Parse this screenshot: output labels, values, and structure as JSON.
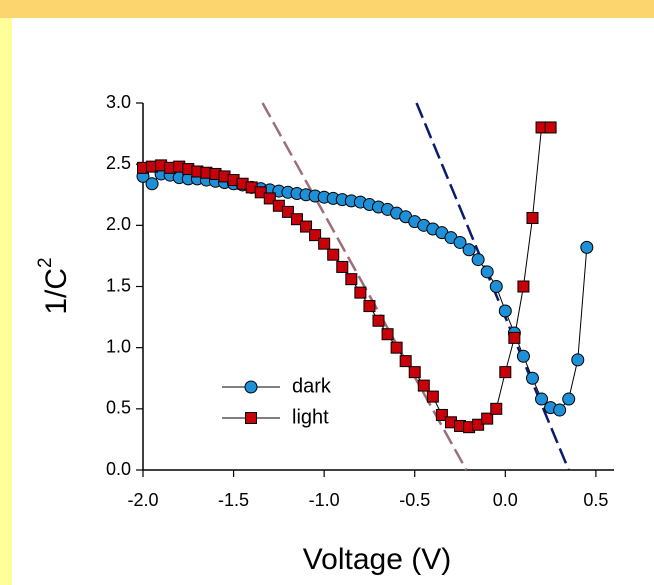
{
  "chart_data": {
    "type": "scatter",
    "xlabel": "Voltage (V)",
    "ylabel": "1/C",
    "ylabel_sup": "2",
    "xlim": [
      -2.0,
      0.6
    ],
    "ylim": [
      0.0,
      3.0
    ],
    "xticks": [
      {
        "value": -2,
        "label": "-2.0"
      },
      -1.5,
      {
        "value": -1,
        "label": "-1.0"
      },
      -0.5,
      {
        "value": 0,
        "label": "0.0"
      },
      0.5
    ],
    "yticks": [
      {
        "value": 0,
        "label": "0.0"
      },
      0.5,
      {
        "value": 1,
        "label": "1.0"
      },
      1.5,
      {
        "value": 2,
        "label": "2.0"
      },
      2.5,
      {
        "value": 3,
        "label": "3.0"
      }
    ],
    "legend": "lower-left",
    "series": [
      {
        "name": "dark",
        "color": "#1e90d8",
        "marker": "circle",
        "x": [
          -2.0,
          -1.95,
          -1.9,
          -1.85,
          -1.8,
          -1.75,
          -1.7,
          -1.65,
          -1.6,
          -1.55,
          -1.5,
          -1.45,
          -1.4,
          -1.35,
          -1.3,
          -1.25,
          -1.2,
          -1.15,
          -1.1,
          -1.05,
          -1.0,
          -0.95,
          -0.9,
          -0.85,
          -0.8,
          -0.75,
          -0.7,
          -0.65,
          -0.6,
          -0.55,
          -0.5,
          -0.45,
          -0.4,
          -0.35,
          -0.3,
          -0.25,
          -0.2,
          -0.15,
          -0.1,
          -0.05,
          0.0,
          0.05,
          0.1,
          0.15,
          0.2,
          0.25,
          0.3,
          0.35,
          0.4,
          0.45
        ],
        "values": [
          2.4,
          2.34,
          2.42,
          2.41,
          2.39,
          2.38,
          2.38,
          2.37,
          2.36,
          2.35,
          2.34,
          2.33,
          2.31,
          2.3,
          2.29,
          2.28,
          2.27,
          2.26,
          2.25,
          2.24,
          2.23,
          2.22,
          2.21,
          2.2,
          2.19,
          2.17,
          2.15,
          2.13,
          2.1,
          2.07,
          2.03,
          2.0,
          1.97,
          1.94,
          1.9,
          1.86,
          1.8,
          1.72,
          1.62,
          1.5,
          1.3,
          1.12,
          0.93,
          0.75,
          0.58,
          0.51,
          0.49,
          0.58,
          0.9,
          1.82
        ]
      },
      {
        "name": "light",
        "color": "#c8000a",
        "marker": "square",
        "x": [
          -2.0,
          -1.95,
          -1.9,
          -1.85,
          -1.8,
          -1.75,
          -1.7,
          -1.65,
          -1.6,
          -1.55,
          -1.5,
          -1.45,
          -1.4,
          -1.35,
          -1.3,
          -1.25,
          -1.2,
          -1.15,
          -1.1,
          -1.05,
          -1.0,
          -0.95,
          -0.9,
          -0.85,
          -0.8,
          -0.75,
          -0.7,
          -0.65,
          -0.6,
          -0.55,
          -0.5,
          -0.45,
          -0.4,
          -0.35,
          -0.3,
          -0.25,
          -0.2,
          -0.15,
          -0.1,
          -0.05,
          0.0,
          0.05,
          0.1,
          0.15,
          0.2,
          0.25
        ],
        "values": [
          2.47,
          2.48,
          2.49,
          2.47,
          2.48,
          2.46,
          2.44,
          2.43,
          2.42,
          2.4,
          2.37,
          2.34,
          2.31,
          2.27,
          2.22,
          2.16,
          2.11,
          2.05,
          1.99,
          1.92,
          1.85,
          1.76,
          1.66,
          1.56,
          1.45,
          1.34,
          1.22,
          1.11,
          1.0,
          0.89,
          0.8,
          0.69,
          0.6,
          0.45,
          0.39,
          0.36,
          0.35,
          0.37,
          0.42,
          0.5,
          0.8,
          1.08,
          1.5,
          2.06,
          2.8,
          2.8
        ]
      }
    ],
    "fit_lines": [
      {
        "color": "#9c6f78",
        "x": [
          -1.34,
          -0.215
        ],
        "y": [
          3.0,
          0.0
        ]
      },
      {
        "color": "#0a1a6e",
        "x": [
          -0.49,
          0.35
        ],
        "y": [
          3.0,
          0.0
        ]
      }
    ]
  }
}
